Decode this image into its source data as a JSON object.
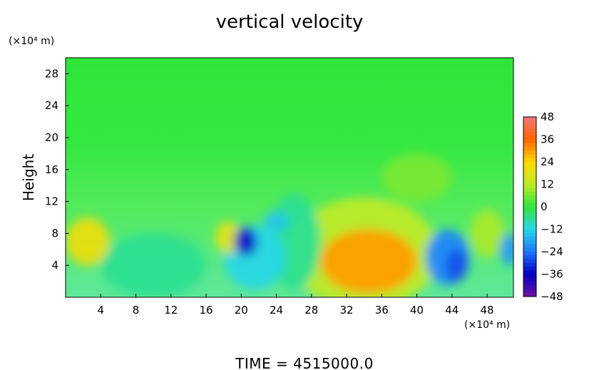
{
  "chart_data": {
    "type": "heatmap",
    "title": "vertical velocity",
    "ylabel": "Height",
    "xlabel": "",
    "y_unit": "(×10⁴ m)",
    "x_unit": "(×10⁴ m)",
    "xlim": [
      0,
      51
    ],
    "ylim": [
      0,
      30
    ],
    "x_ticks": [
      4,
      8,
      12,
      16,
      20,
      24,
      28,
      32,
      36,
      40,
      44,
      48
    ],
    "y_ticks": [
      4,
      8,
      12,
      16,
      20,
      24,
      28
    ],
    "colorbar": {
      "ticks": [
        48,
        36,
        24,
        12,
        0,
        -12,
        -24,
        -36,
        -48
      ],
      "range": [
        -48,
        48
      ]
    },
    "background_value": 0,
    "features": [
      {
        "x": 34.5,
        "y": 4.5,
        "value": 30,
        "rx": 5.5,
        "ry": 4.0
      },
      {
        "x": 34.0,
        "y": 5.5,
        "value": 12,
        "rx": 8.5,
        "ry": 7.0
      },
      {
        "x": 2.5,
        "y": 7.0,
        "value": 20,
        "rx": 2.5,
        "ry": 3.0
      },
      {
        "x": 18.5,
        "y": 7.5,
        "value": 18,
        "rx": 1.5,
        "ry": 2.0
      },
      {
        "x": 20.5,
        "y": 7.0,
        "value": -34,
        "rx": 1.3,
        "ry": 1.8
      },
      {
        "x": 21.5,
        "y": 5.0,
        "value": -12,
        "rx": 3.5,
        "ry": 4.0
      },
      {
        "x": 24.0,
        "y": 9.5,
        "value": -14,
        "rx": 1.5,
        "ry": 1.2
      },
      {
        "x": 43.5,
        "y": 5.0,
        "value": -22,
        "rx": 2.5,
        "ry": 3.5
      },
      {
        "x": 44.5,
        "y": 4.0,
        "value": -28,
        "rx": 1.2,
        "ry": 2.0
      },
      {
        "x": 50.5,
        "y": 6.0,
        "value": -20,
        "rx": 1.0,
        "ry": 2.0
      },
      {
        "x": 10.0,
        "y": 4.0,
        "value": -6,
        "rx": 6.0,
        "ry": 4.0
      },
      {
        "x": 26.0,
        "y": 7.0,
        "value": -6,
        "rx": 3.0,
        "ry": 6.0
      },
      {
        "x": 48.0,
        "y": 8.0,
        "value": 10,
        "rx": 2.0,
        "ry": 3.0
      },
      {
        "x": 40.0,
        "y": 15.0,
        "value": 6,
        "rx": 4.0,
        "ry": 3.0
      }
    ]
  },
  "footer": {
    "time_label": "TIME  =  4515000.0"
  }
}
